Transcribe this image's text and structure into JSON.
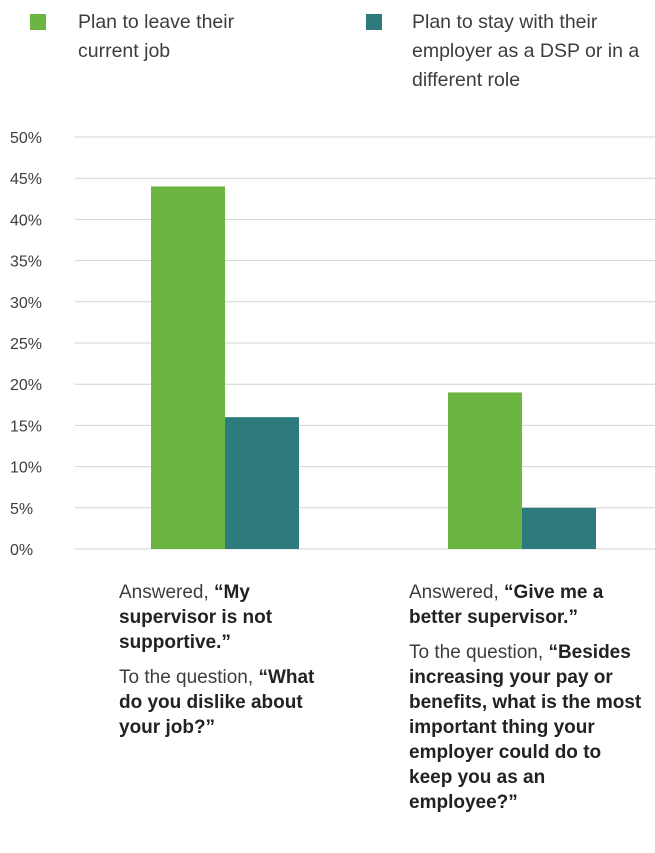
{
  "legend": [
    {
      "label": "Plan to leave their current job",
      "color": "#6cb543"
    },
    {
      "label": "Plan to stay with their employer as a DSP or in a different role",
      "color": "#2e7b7d"
    }
  ],
  "chart_data": {
    "type": "bar",
    "categories": [
      "Answered, “My supervisor is not supportive.”",
      "Answered, “Give me a better supervisor.”"
    ],
    "series": [
      {
        "name": "Plan to leave their current job",
        "values": [
          44,
          19
        ],
        "color": "#6cb543"
      },
      {
        "name": "Plan to stay with their employer as a DSP or in a different role",
        "values": [
          16,
          5
        ],
        "color": "#2e7b7d"
      }
    ],
    "yticks": [
      "0%",
      "5%",
      "10%",
      "15%",
      "20%",
      "25%",
      "30%",
      "35%",
      "40%",
      "45%",
      "50%"
    ],
    "ylim": [
      0,
      50
    ],
    "grid": true,
    "legend_position": "top"
  },
  "annotations": [
    {
      "answer_prefix": "Answered, ",
      "answer_quote": "“My supervisor is not supportive.”",
      "question_prefix": "To the question, ",
      "question_quote": "“What do you dislike about your job?”"
    },
    {
      "answer_prefix": "Answered, ",
      "answer_quote": "“Give me a better supervisor.”",
      "question_prefix": "To the question, ",
      "question_quote": "“Besides increasing your pay or benefits, what is the most important thing your employer could do to keep you as an employee?”"
    }
  ]
}
